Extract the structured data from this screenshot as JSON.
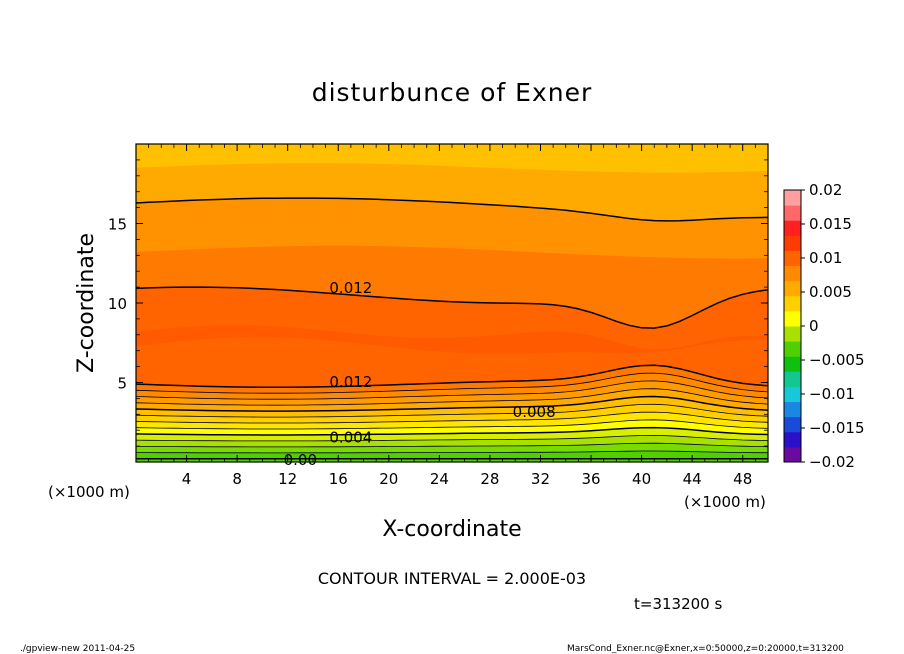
{
  "chart_data": {
    "type": "heatmap",
    "title": "disturbunce of Exner",
    "xlabel": "X-coordinate",
    "ylabel": "Z-coordinate",
    "x_unit": "(×1000 m)",
    "y_unit": "(×1000 m)",
    "xlim": [
      0,
      50
    ],
    "ylim": [
      0,
      20
    ],
    "x_ticks": [
      4,
      8,
      12,
      16,
      20,
      24,
      28,
      32,
      36,
      40,
      44,
      48
    ],
    "y_ticks": [
      5,
      10,
      15
    ],
    "contour_interval_text": "CONTOUR INTERVAL = 2.000E-03",
    "time_text": "t=313200 s",
    "contour_labels": [
      {
        "text": "0.012",
        "x": 17.0,
        "z": 11.0
      },
      {
        "text": "0.012",
        "x": 17.0,
        "z": 5.1
      },
      {
        "text": "0.008",
        "x": 31.5,
        "z": 3.2
      },
      {
        "text": "0.004",
        "x": 17.0,
        "z": 1.6
      },
      {
        "text": "0.00",
        "x": 13.0,
        "z": 0.2
      }
    ],
    "colorbar": {
      "min": -0.02,
      "max": 0.02,
      "tick_labels": [
        "0.02",
        "0.015",
        "0.01",
        "0.005",
        "0",
        "−0.005",
        "−0.01",
        "−0.015",
        "−0.02"
      ],
      "tick_values": [
        0.02,
        0.015,
        0.01,
        0.005,
        0,
        -0.005,
        -0.01,
        -0.015,
        -0.02
      ],
      "colors": [
        "#6a0aa0",
        "#2a10c8",
        "#1a4ad8",
        "#1a88e0",
        "#18c8d8",
        "#10c890",
        "#10c010",
        "#50d000",
        "#a8e000",
        "#ffff00",
        "#ffd000",
        "#ffaa00",
        "#ff8a00",
        "#ff6400",
        "#ff3c00",
        "#ff2020",
        "#ff6868",
        "#ffa0a0"
      ]
    },
    "field_bands": [
      {
        "level": 0.0,
        "color": "#50d000"
      },
      {
        "level": 0.001,
        "color": "#78dc00"
      },
      {
        "level": 0.002,
        "color": "#a8e000"
      },
      {
        "level": 0.003,
        "color": "#d8f000"
      },
      {
        "level": 0.004,
        "color": "#ffff00"
      },
      {
        "level": 0.005,
        "color": "#ffe600"
      },
      {
        "level": 0.006,
        "color": "#ffd000"
      },
      {
        "level": 0.007,
        "color": "#ffbe00"
      },
      {
        "level": 0.008,
        "color": "#ffaa00"
      },
      {
        "level": 0.009,
        "color": "#ff9a00"
      },
      {
        "level": 0.01,
        "color": "#ff8a00"
      },
      {
        "level": 0.011,
        "color": "#ff7800"
      },
      {
        "level": 0.012,
        "color": "#ff6400"
      },
      {
        "level": 0.013,
        "color": "#ff5000"
      },
      {
        "level": 0.014,
        "color": "#ff4000"
      }
    ]
  },
  "footer": {
    "left": "./gpview-new   2011-04-25",
    "right": "MarsCond_Exner.nc@Exner,x=0:50000,z=0:20000,t=313200"
  }
}
